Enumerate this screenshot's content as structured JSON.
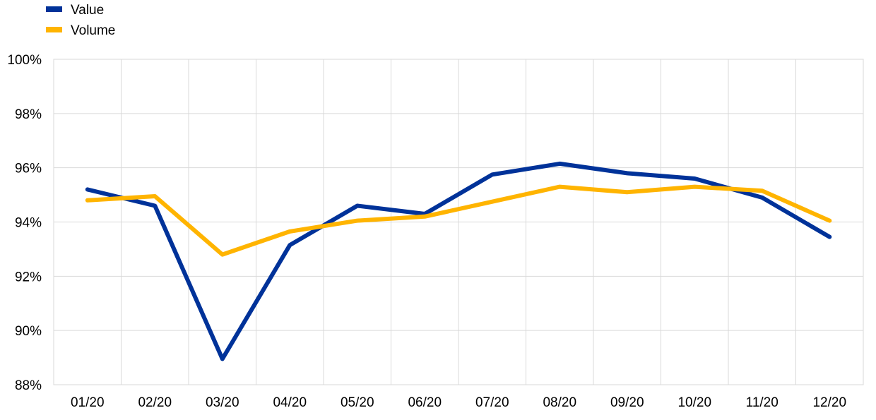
{
  "chart_data": {
    "type": "line",
    "title": "",
    "xlabel": "",
    "ylabel": "",
    "categories": [
      "01/20",
      "02/20",
      "03/20",
      "04/20",
      "05/20",
      "06/20",
      "07/20",
      "08/20",
      "09/20",
      "10/20",
      "11/20",
      "12/20"
    ],
    "ylim": [
      88,
      100
    ],
    "yticks": [
      88,
      90,
      92,
      94,
      96,
      98,
      100
    ],
    "ytick_labels": [
      "88%",
      "90%",
      "92%",
      "94%",
      "96%",
      "98%",
      "100%"
    ],
    "grid": true,
    "legend_position": "top-left",
    "series": [
      {
        "name": "Value",
        "color": "#003299",
        "values": [
          95.2,
          94.6,
          88.95,
          93.15,
          94.6,
          94.3,
          95.75,
          96.15,
          95.8,
          95.6,
          94.9,
          93.45
        ]
      },
      {
        "name": "Volume",
        "color": "#FFB400",
        "values": [
          94.8,
          94.95,
          92.8,
          93.65,
          94.05,
          94.2,
          94.75,
          95.3,
          95.1,
          95.3,
          95.15,
          94.05
        ]
      }
    ]
  }
}
